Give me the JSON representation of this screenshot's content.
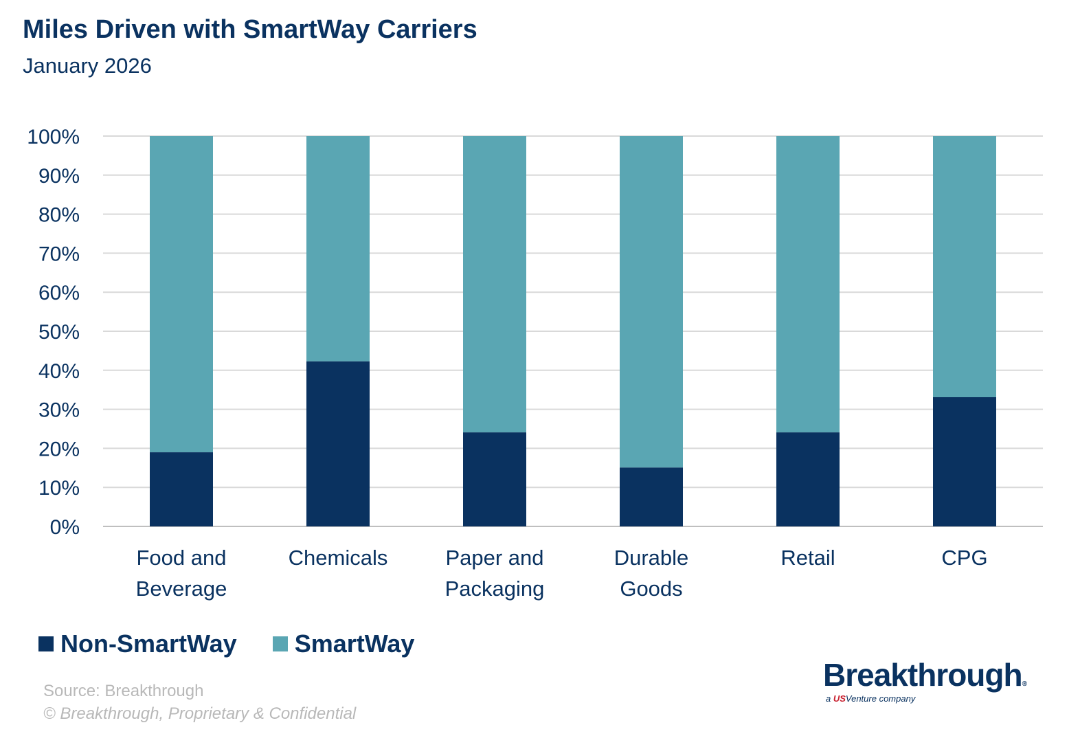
{
  "chart_data": {
    "type": "bar",
    "stacked": true,
    "title": "Miles Driven with SmartWay Carriers",
    "subtitle": "January 2026",
    "categories": [
      [
        "Food and",
        "Beverage"
      ],
      [
        "Chemicals"
      ],
      [
        "Paper and",
        "Packaging"
      ],
      [
        "Durable",
        "Goods"
      ],
      [
        "Retail"
      ],
      [
        "CPG"
      ]
    ],
    "series": [
      {
        "name": "Non-SmartWay",
        "color": "#0a3260",
        "values": [
          19.0,
          42.3,
          24.1,
          15.1,
          24.1,
          33.1
        ]
      },
      {
        "name": "SmartWay",
        "color": "#5aa6b3",
        "values": [
          81.0,
          57.7,
          75.9,
          84.9,
          75.9,
          66.9
        ]
      }
    ],
    "ylim": [
      0,
      100
    ],
    "yticks": [
      "0%",
      "10%",
      "20%",
      "30%",
      "40%",
      "50%",
      "60%",
      "70%",
      "80%",
      "90%",
      "100%"
    ],
    "grid": true,
    "legend": "bottom-left"
  },
  "footer": {
    "source": "Source: Breakthrough",
    "copyright": "© Breakthrough, Proprietary & Confidential"
  },
  "logo": {
    "name": "Breakthrough",
    "tagline": "a USVenture company"
  }
}
